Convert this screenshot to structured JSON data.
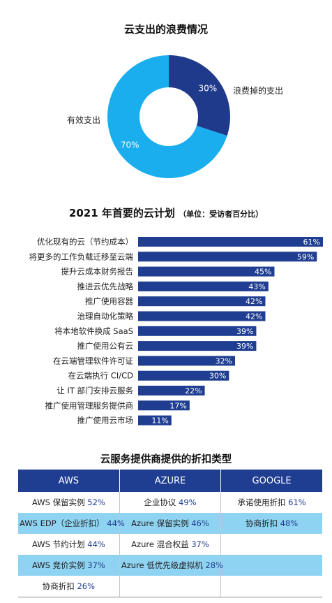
{
  "chart_data": [
    {
      "type": "pie",
      "title": "云支出的浪费情况",
      "categories": [
        "浪费掉的支出",
        "有效支出"
      ],
      "values": [
        30,
        70
      ],
      "value_labels": [
        "30%",
        "70%"
      ],
      "colors": [
        "#1f3a8a",
        "#1aaeee"
      ]
    },
    {
      "type": "bar",
      "orientation": "horizontal",
      "title": "2021 年首要的云计划",
      "subtitle": "（单位：受访者百分比）",
      "categories": [
        "优化现有的云（节约成本）",
        "将更多的工作负载迁移至云端",
        "提升云成本财务报告",
        "推进云优先战略",
        "推广使用容器",
        "治理自动化策略",
        "将本地软件换成 SaaS",
        "推广使用公有云",
        "在云端管理软件许可证",
        "在云端执行 CI/CD",
        "让 IT 部门安排云服务",
        "推广使用管理服务提供商",
        "推广使用云市场"
      ],
      "values": [
        61,
        59,
        45,
        43,
        42,
        42,
        39,
        39,
        32,
        30,
        22,
        17,
        11
      ],
      "value_labels": [
        "61%",
        "59%",
        "45%",
        "43%",
        "42%",
        "42%",
        "39%",
        "39%",
        "32%",
        "30%",
        "22%",
        "17%",
        "11%"
      ],
      "xlim": [
        0,
        61
      ],
      "colors": [
        "#1f3e92"
      ]
    },
    {
      "type": "table",
      "title": "云服务提供商提供的折扣类型",
      "columns": [
        "AWS",
        "AZURE",
        "GOOGLE"
      ],
      "rows": [
        [
          {
            "text": "AWS 保留实例",
            "pct": "52%"
          },
          {
            "text": "企业协议",
            "pct": "49%"
          },
          {
            "text": "承诺使用折扣",
            "pct": "61%"
          }
        ],
        [
          {
            "text": "AWS EDP（企业折扣）",
            "pct": "44%"
          },
          {
            "text": "Azure 保留实例",
            "pct": "46%"
          },
          {
            "text": "协商折扣",
            "pct": "48%"
          }
        ],
        [
          {
            "text": "AWS 节约计划",
            "pct": "44%"
          },
          {
            "text": "Azure 混合权益",
            "pct": "37%"
          },
          null
        ],
        [
          {
            "text": "AWS 竞价实例",
            "pct": "37%"
          },
          {
            "text": "Azure 低优先级虚拟机",
            "pct": "28%"
          },
          null
        ],
        [
          {
            "text": "协商折扣",
            "pct": "26%"
          },
          null,
          null
        ]
      ],
      "header_color": "#1f3e92",
      "alt_row_color": "#8fd3f2"
    }
  ]
}
